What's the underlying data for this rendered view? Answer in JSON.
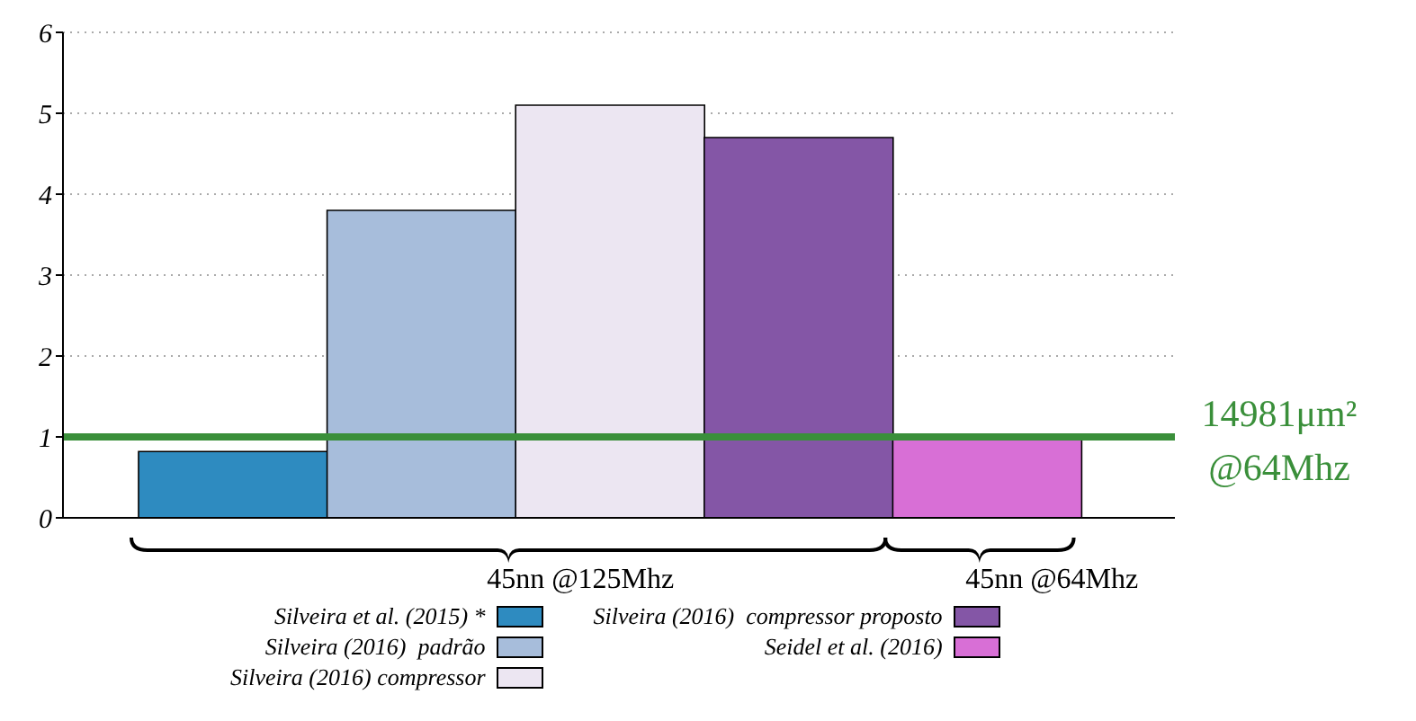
{
  "chart_data": {
    "type": "bar",
    "stacked": true,
    "categories": [
      null,
      null,
      null,
      null,
      null
    ],
    "series": [
      {
        "name": "Silveira et al. (2015) *",
        "color": "#2e8bc0",
        "values": [
          0.82,
          null,
          null,
          null,
          null
        ]
      },
      {
        "name": "Silveira (2016)  padrão",
        "color": "#a7bddb",
        "values": [
          null,
          3.8,
          null,
          null,
          null
        ]
      },
      {
        "name": "Silveira (2016) compressor",
        "color": "#ece6f2",
        "values": [
          null,
          null,
          5.1,
          null,
          null
        ]
      },
      {
        "name": "Silveira (2016)  compressor proposto",
        "color": "#8456a6",
        "values": [
          null,
          null,
          null,
          4.7,
          null
        ]
      },
      {
        "name": "Seidel et al. (2016)",
        "color": "#d86fd6",
        "values": [
          null,
          null,
          null,
          null,
          0.97
        ]
      }
    ],
    "ylim": [
      0,
      6
    ],
    "yticks": [
      0,
      1,
      2,
      3,
      4,
      5,
      6
    ],
    "grid": "y",
    "legend": "bottom",
    "ref_lines": [
      {
        "axis": "y",
        "value": 1,
        "label": "14981μm² @64Mhz",
        "color": "#3a8f3a"
      }
    ],
    "annotations": [
      "45nn @125Mhz",
      "45nn @64Mhz"
    ]
  }
}
